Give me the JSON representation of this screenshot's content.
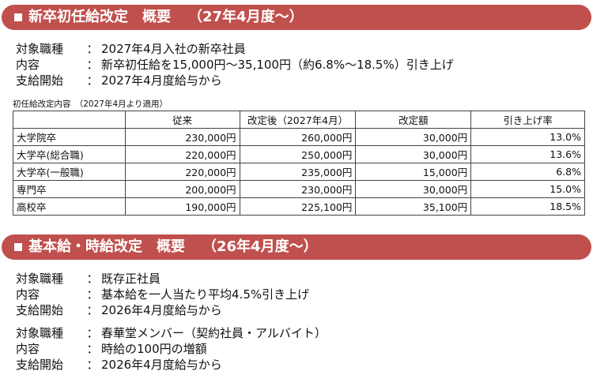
{
  "section1": {
    "title": "新卒初任給改定　概要",
    "subtitle": "（27年4月度～）",
    "items": [
      {
        "key": "対象職種",
        "value": "2027年4月入社の新卒社員"
      },
      {
        "key": "内容",
        "value": "新卒初任給を15,000円～35,100円（約6.8%～18.5%）引き上げ"
      },
      {
        "key": "支給開始",
        "value": "2027年4月度給与から"
      }
    ],
    "table_caption": "初任給改定内容　（2027年4月より適用）",
    "table": {
      "headers": [
        "",
        "従来",
        "改定後（2027年4月）",
        "改定額",
        "引き上げ率"
      ],
      "rows": [
        [
          "大学院卒",
          "230,000円",
          "260,000円",
          "30,000円",
          "13.0%"
        ],
        [
          "大学卒(総合職)",
          "220,000円",
          "250,000円",
          "30,000円",
          "13.6%"
        ],
        [
          "大学卒(一般職)",
          "220,000円",
          "235,000円",
          "15,000円",
          "6.8%"
        ],
        [
          "専門卒",
          "200,000円",
          "230,000円",
          "30,000円",
          "15.0%"
        ],
        [
          "高校卒",
          "190,000円",
          "225,100円",
          "35,100円",
          "18.5%"
        ]
      ]
    }
  },
  "section2": {
    "title": "基本給・時給改定　概要",
    "subtitle": "（26年4月度～）",
    "group1": [
      {
        "key": "対象職種",
        "value": "既存正社員"
      },
      {
        "key": "内容",
        "value": "基本給を一人当たり平均4.5%引き上げ"
      },
      {
        "key": "支給開始",
        "value": "2026年4月度給与から"
      }
    ],
    "group2": [
      {
        "key": "対象職種",
        "value": "春華堂メンバー（契約社員・アルバイト）"
      },
      {
        "key": "内容",
        "value": "時給の100円の増額"
      },
      {
        "key": "支給開始",
        "value": "2026年4月度給与から"
      }
    ]
  },
  "separator": "：",
  "colors": {
    "banner": "#c0504d",
    "banner_text": "#ffffff"
  }
}
